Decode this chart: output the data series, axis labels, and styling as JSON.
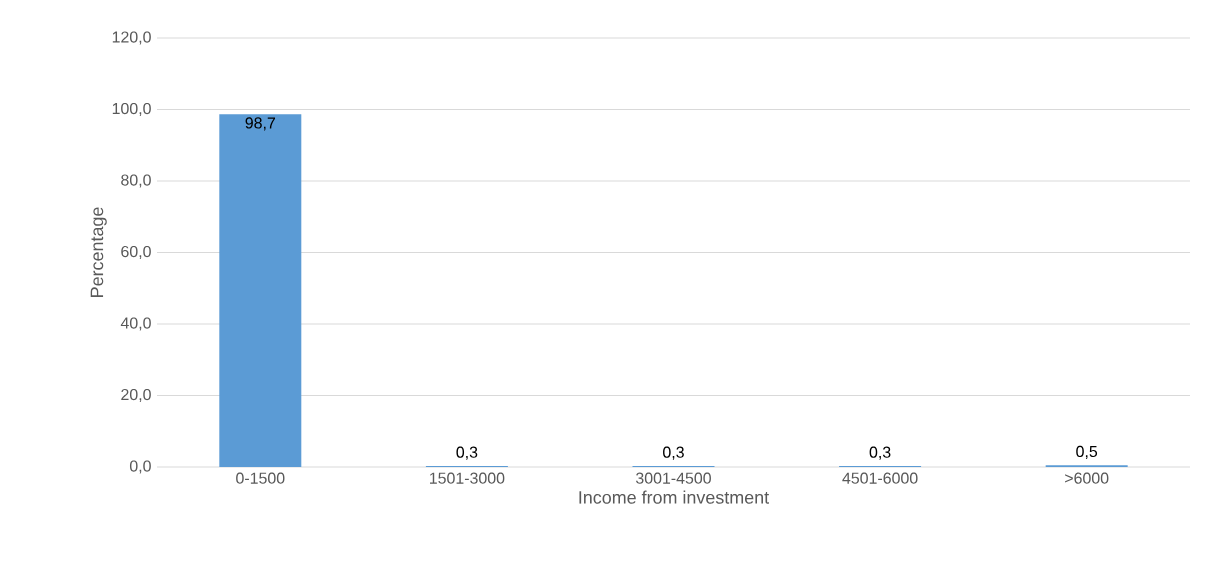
{
  "chart_data": {
    "type": "bar",
    "xlabel": "Income from investment",
    "ylabel": "Percentage",
    "categories": [
      "0-1500",
      "1501-3000",
      "3001-4500",
      "4501-6000",
      ">6000"
    ],
    "values": [
      98.7,
      0.3,
      0.3,
      0.3,
      0.5
    ],
    "value_labels": [
      "98,7",
      "0,3",
      "0,3",
      "0,3",
      "0,5"
    ],
    "color": "#5b9bd5",
    "ylim": [
      0,
      120
    ],
    "yticks": [
      {
        "value": 0,
        "label": "0,0"
      },
      {
        "value": 20,
        "label": "20,0"
      },
      {
        "value": 40,
        "label": "40,0"
      },
      {
        "value": 60,
        "label": "60,0"
      },
      {
        "value": 80,
        "label": "80,0"
      },
      {
        "value": 100,
        "label": "100,0"
      },
      {
        "value": 120,
        "label": "120,0"
      }
    ],
    "grid": "y"
  }
}
